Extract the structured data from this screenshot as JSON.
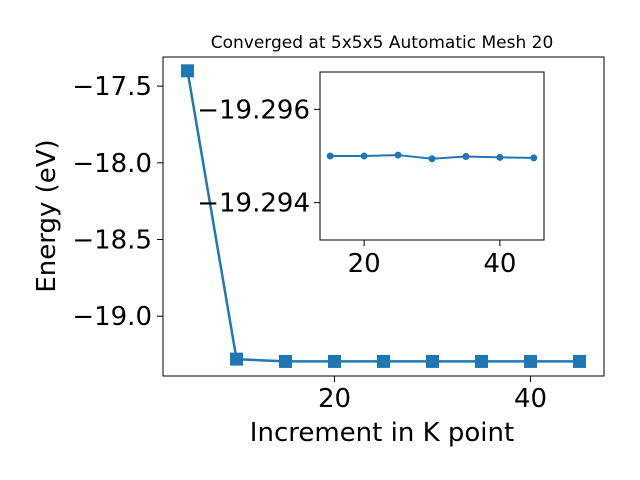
{
  "chart_data": [
    {
      "type": "line",
      "title": "Converged at 5x5x5 Automatic Mesh 20",
      "xlabel": "Increment in K point",
      "ylabel": "Energy (eV)",
      "xlim": [
        2.5,
        47.5
      ],
      "ylim": [
        -19.39,
        -17.31
      ],
      "x_ticks": [
        20,
        40
      ],
      "x_tick_labels": [
        "20",
        "40"
      ],
      "y_ticks": [
        -17.5,
        -18.0,
        -18.5,
        -19.0
      ],
      "y_tick_labels": [
        "−17.5",
        "−18.0",
        "−18.5",
        "−19.0"
      ],
      "grid": false,
      "marker": "square",
      "color": "#1f77b4",
      "x": [
        5,
        10,
        15,
        20,
        25,
        30,
        35,
        40,
        45
      ],
      "y": [
        -17.4,
        -19.28,
        -19.295,
        -19.295,
        -19.295,
        -19.295,
        -19.295,
        -19.295,
        -19.295
      ]
    },
    {
      "type": "line",
      "title": "",
      "xlabel": "",
      "ylabel": "",
      "inset": true,
      "xlim": [
        13.5,
        46.5
      ],
      "ylim": [
        -19.2932,
        -19.2968
      ],
      "x_ticks": [
        20,
        40
      ],
      "x_tick_labels": [
        "20",
        "40"
      ],
      "y_ticks": [
        -19.296,
        -19.294
      ],
      "y_tick_labels": [
        "−19.296",
        "−19.294"
      ],
      "grid": false,
      "marker": "circle",
      "color": "#1f77b4",
      "x": [
        15,
        20,
        25,
        30,
        35,
        40,
        45
      ],
      "y": [
        -19.295,
        -19.295,
        -19.29502,
        -19.29494,
        -19.29499,
        -19.29497,
        -19.29496
      ]
    }
  ]
}
